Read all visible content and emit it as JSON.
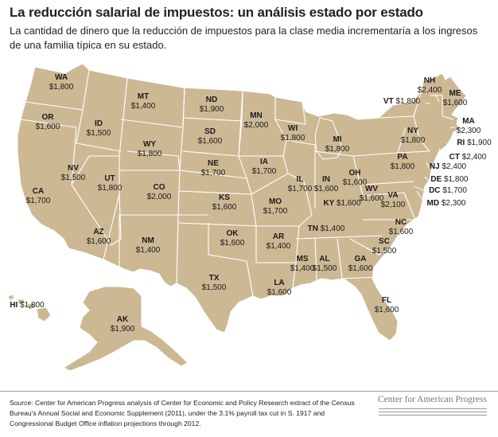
{
  "header": {
    "title": "La reducción salarial de impuestos: un análisis estado por estado",
    "subtitle": "La cantidad de dinero que la reducción de impuestos para la clase media incrementaría a los ingresos de una familia típica en su estado."
  },
  "colors": {
    "land": "#cdb894",
    "border": "#ffffff",
    "text": "#1a1a1a"
  },
  "states": [
    {
      "abbr": "WA",
      "value": "$1,800"
    },
    {
      "abbr": "OR",
      "value": "$1,600"
    },
    {
      "abbr": "CA",
      "value": "$1,700"
    },
    {
      "abbr": "NV",
      "value": "$1,500"
    },
    {
      "abbr": "ID",
      "value": "$1,500"
    },
    {
      "abbr": "MT",
      "value": "$1,400"
    },
    {
      "abbr": "WY",
      "value": "$1,800"
    },
    {
      "abbr": "UT",
      "value": "$1,800"
    },
    {
      "abbr": "AZ",
      "value": "$1,600"
    },
    {
      "abbr": "CO",
      "value": "$2,000"
    },
    {
      "abbr": "NM",
      "value": "$1,400"
    },
    {
      "abbr": "ND",
      "value": "$1,900"
    },
    {
      "abbr": "SD",
      "value": "$1,600"
    },
    {
      "abbr": "NE",
      "value": "$1,700"
    },
    {
      "abbr": "KS",
      "value": "$1,600"
    },
    {
      "abbr": "OK",
      "value": "$1,600"
    },
    {
      "abbr": "TX",
      "value": "$1,500"
    },
    {
      "abbr": "MN",
      "value": "$2,000"
    },
    {
      "abbr": "IA",
      "value": "$1,700"
    },
    {
      "abbr": "MO",
      "value": "$1,700"
    },
    {
      "abbr": "AR",
      "value": "$1,400"
    },
    {
      "abbr": "LA",
      "value": "$1,600"
    },
    {
      "abbr": "WI",
      "value": "$1,800"
    },
    {
      "abbr": "IL",
      "value": "$1,700"
    },
    {
      "abbr": "MI",
      "value": "$1,800"
    },
    {
      "abbr": "IN",
      "value": "$1,600"
    },
    {
      "abbr": "OH",
      "value": "$1,600"
    },
    {
      "abbr": "KY",
      "value": "$1,600"
    },
    {
      "abbr": "TN",
      "value": "$1,400"
    },
    {
      "abbr": "MS",
      "value": "$1,400"
    },
    {
      "abbr": "AL",
      "value": "$1,500"
    },
    {
      "abbr": "GA",
      "value": "$1,600"
    },
    {
      "abbr": "FL",
      "value": "$1,600"
    },
    {
      "abbr": "SC",
      "value": "$1,500"
    },
    {
      "abbr": "NC",
      "value": "$1,600"
    },
    {
      "abbr": "VA",
      "value": "$2,100"
    },
    {
      "abbr": "WV",
      "value": "$1,600"
    },
    {
      "abbr": "PA",
      "value": "$1,800"
    },
    {
      "abbr": "NY",
      "value": "$1,800"
    },
    {
      "abbr": "VT",
      "value": "$1,800"
    },
    {
      "abbr": "NH",
      "value": "$2,400"
    },
    {
      "abbr": "ME",
      "value": "$1,600"
    },
    {
      "abbr": "MA",
      "value": "$2,300"
    },
    {
      "abbr": "RI",
      "value": "$1,900"
    },
    {
      "abbr": "CT",
      "value": "$2,400"
    },
    {
      "abbr": "NJ",
      "value": "$2,400"
    },
    {
      "abbr": "DE",
      "value": "$1,800"
    },
    {
      "abbr": "DC",
      "value": "$1,700"
    },
    {
      "abbr": "MD",
      "value": "$2,300"
    },
    {
      "abbr": "HI",
      "value": "$1,800"
    },
    {
      "abbr": "AK",
      "value": "$1,900"
    }
  ],
  "footer": {
    "source": "Source: Center for American Progress analysis of Center for Economic and Policy Research extract of the Census Bureau's Annual Social and Economic Supplement (2011), under the 3.1% payroll tax cut in S. 1917 and Congressional Budget Office inflation projections through 2012.",
    "brand": "Center for American Progress"
  }
}
